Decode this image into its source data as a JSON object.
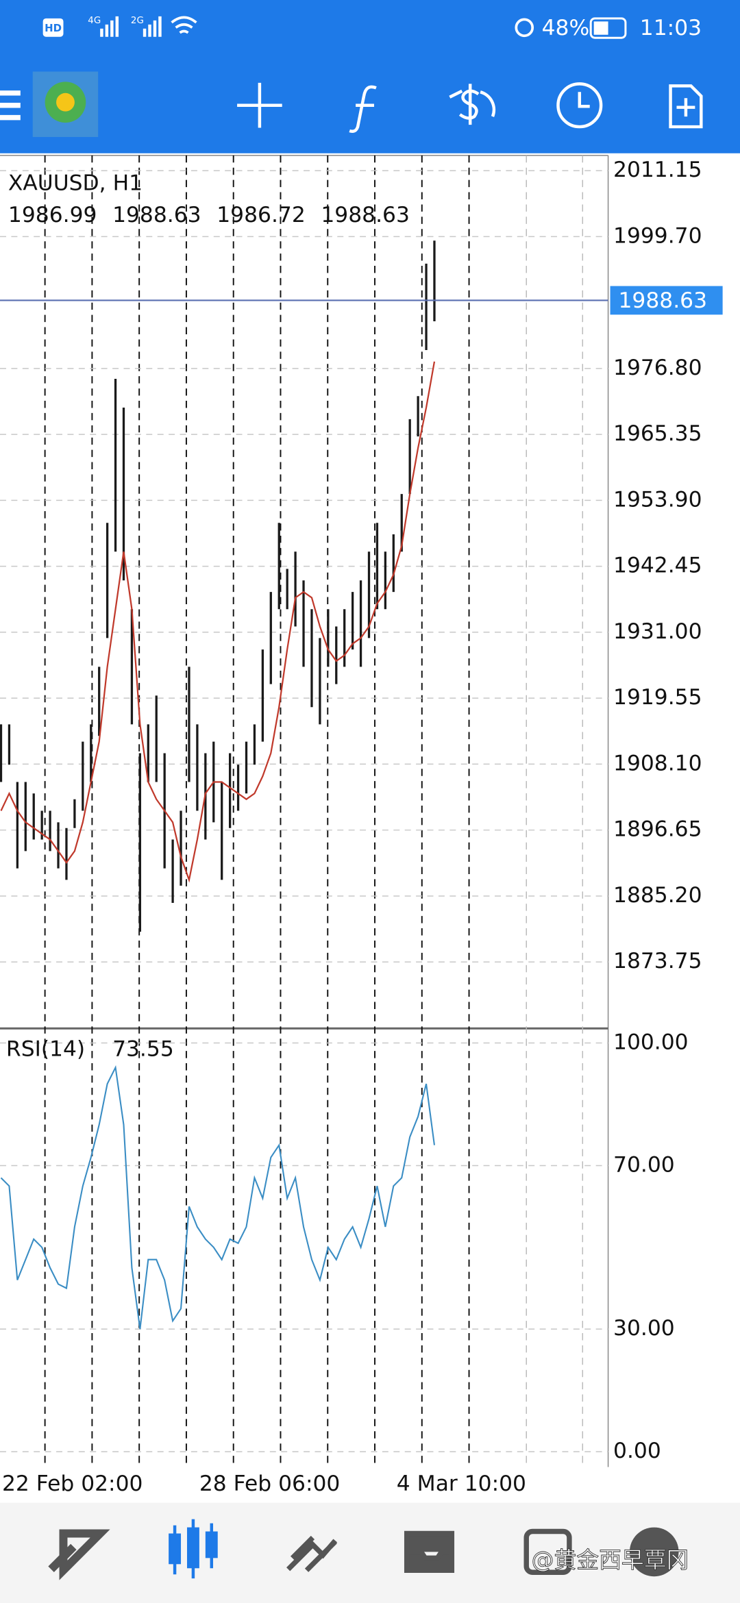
{
  "status_bar": {
    "hd": "HD",
    "net1": "4G",
    "net2": "2G",
    "battery": "48%",
    "time": "11:03"
  },
  "chart_data": [
    {
      "type": "range_bar",
      "title": "XAUUSD, H1",
      "quote": [
        1986.99,
        1988.63,
        1986.72,
        1988.63
      ],
      "color": "#1a1a1a",
      "last_price": 1988.63,
      "high": [
        1915,
        1915,
        1905,
        1905,
        1903,
        1900,
        1900,
        1898,
        1897,
        1902,
        1912,
        1915,
        1925,
        1950,
        1975,
        1970,
        1935,
        1910,
        1915,
        1920,
        1910,
        1895,
        1900,
        1925,
        1915,
        1910,
        1912,
        1905,
        1910,
        1908,
        1912,
        1915,
        1928,
        1938,
        1950,
        1942,
        1945,
        1940,
        1935,
        1930,
        1935,
        1932,
        1935,
        1938,
        1940,
        1945,
        1950,
        1945,
        1948,
        1955,
        1968,
        1972,
        1995,
        1999
      ],
      "low": [
        1905,
        1908,
        1890,
        1893,
        1895,
        1895,
        1893,
        1890,
        1888,
        1897,
        1900,
        1905,
        1913,
        1930,
        1945,
        1940,
        1915,
        1879,
        1905,
        1905,
        1890,
        1884,
        1887,
        1905,
        1900,
        1895,
        1898,
        1888,
        1897,
        1900,
        1903,
        1908,
        1912,
        1922,
        1935,
        1935,
        1932,
        1925,
        1918,
        1915,
        1925,
        1922,
        1925,
        1928,
        1925,
        1930,
        1935,
        1935,
        1938,
        1945,
        1955,
        1965,
        1980,
        1985
      ],
      "ma": {
        "color": "#c0392b",
        "values": [
          1900,
          1903,
          1900,
          1898,
          1897,
          1896,
          1895,
          1893,
          1891,
          1893,
          1898,
          1905,
          1912,
          1925,
          1935,
          1945,
          1935,
          1915,
          1905,
          1902,
          1900,
          1898,
          1892,
          1888,
          1895,
          1903,
          1905,
          1905,
          1904,
          1903,
          1902,
          1903,
          1906,
          1910,
          1918,
          1928,
          1937,
          1938,
          1937,
          1932,
          1928,
          1926,
          1927,
          1929,
          1930,
          1932,
          1936,
          1938,
          1941,
          1946,
          1955,
          1963,
          1970,
          1978
        ]
      },
      "ylim": [
        1862.2,
        2013.8
      ],
      "yticks": [
        2011.15,
        {
          "value": 1999.7,
          "label": "1999.70"
        },
        {
          "value": 1988.63,
          "label": ""
        },
        {
          "value": 1976.8,
          "label": "1976.80"
        },
        1965.35,
        {
          "value": 1953.9,
          "label": "1953.90"
        },
        1942.45,
        {
          "value": 1931,
          "label": "1931.00"
        },
        1919.55,
        {
          "value": 1908.1,
          "label": "1908.10"
        },
        1896.65,
        {
          "value": 1885.2,
          "label": "1885.20"
        },
        1873.75
      ],
      "grid": true
    },
    {
      "type": "line",
      "title": "RSI(14)",
      "last": 73.55,
      "color": "#3a8dc4",
      "values": [
        67,
        65,
        42,
        47,
        52,
        50,
        45,
        41,
        40,
        55,
        65,
        72,
        80,
        90,
        94,
        80,
        45,
        30,
        47,
        47,
        42,
        32,
        35,
        60,
        55,
        52,
        50,
        47,
        52,
        51,
        55,
        67,
        62,
        72,
        75,
        62,
        67,
        55,
        47,
        42,
        50,
        47,
        52,
        55,
        50,
        57,
        65,
        55,
        65,
        67,
        77,
        82,
        90,
        75
      ],
      "ylim": [
        -3,
        103.3
      ],
      "yticks": [
        {
          "value": 100,
          "label": "100.00"
        },
        {
          "value": 70,
          "label": "70.00"
        },
        {
          "value": 30,
          "label": "30.00"
        },
        {
          "value": 0,
          "label": "0.00"
        }
      ],
      "grid": true
    }
  ],
  "time_axis": {
    "labels": [
      "22 Feb 02:00",
      "28 Feb 06:00",
      "4 Mar 10:00"
    ]
  },
  "watermark": "@黄金西早覃冈"
}
